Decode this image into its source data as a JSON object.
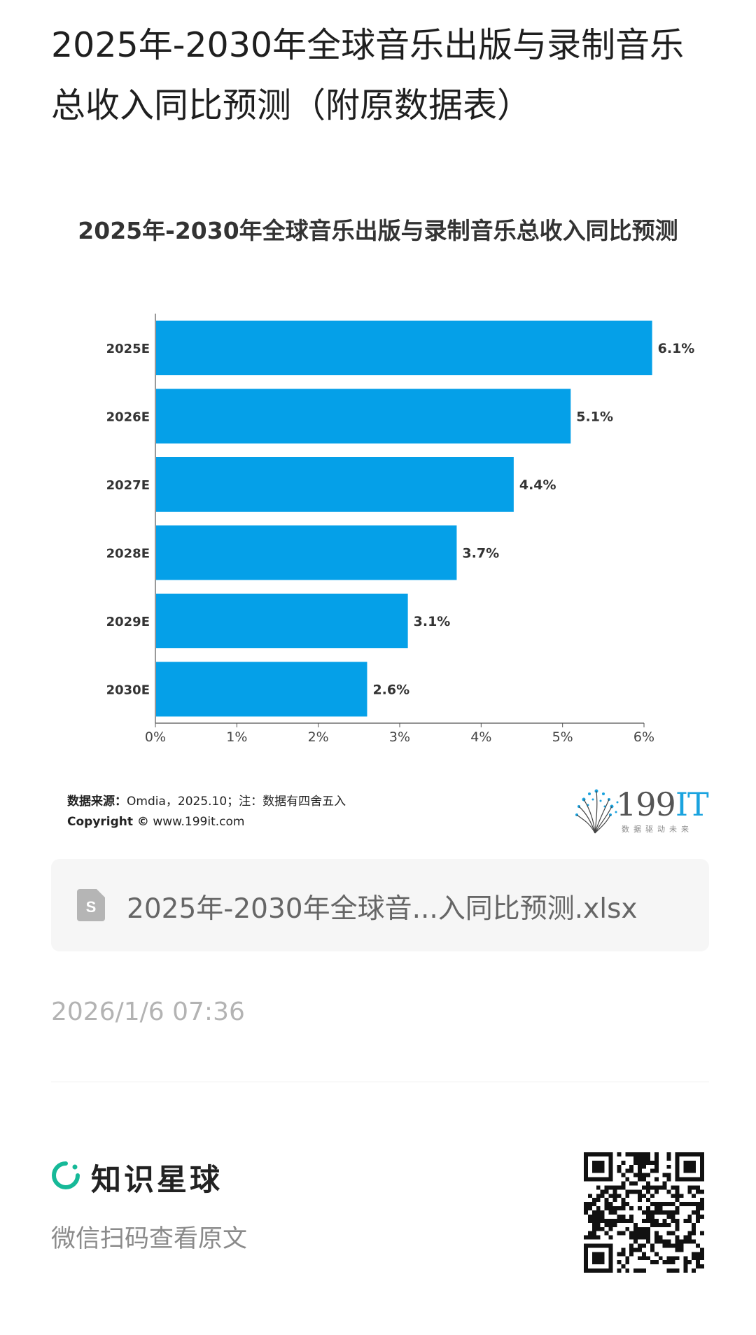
{
  "page": {
    "title": "2025年-2030年全球音乐出版与录制音乐总收入同比预测（附原数据表）"
  },
  "chart_data": {
    "type": "bar",
    "orientation": "horizontal",
    "title": "2025年-2030年全球音乐出版与录制音乐总收入同比预测",
    "categories": [
      "2025E",
      "2026E",
      "2027E",
      "2028E",
      "2029E",
      "2030E"
    ],
    "values": [
      6.1,
      5.1,
      4.4,
      3.7,
      3.1,
      2.6
    ],
    "value_labels": [
      "6.1%",
      "5.1%",
      "4.4%",
      "3.7%",
      "3.1%",
      "2.6%"
    ],
    "xlim": [
      0,
      6
    ],
    "xticks": [
      "0%",
      "1%",
      "2%",
      "3%",
      "4%",
      "5%",
      "6%"
    ],
    "xlabel": "",
    "ylabel": "",
    "bar_color": "#05a0e8",
    "grid": false,
    "legend": "none"
  },
  "source": {
    "label": "数据来源：",
    "text": "Omdia，2025.10；注：数据有四舍五入",
    "copyright_label": "Copyright ©",
    "copyright_url": "www.199it.com"
  },
  "brand": {
    "name_num": "199",
    "name_it": "IT",
    "tagline": "数据驱动未来"
  },
  "attachment": {
    "icon": "spreadsheet-file-icon",
    "filename": "2025年-2030年全球音...入同比预测.xlsx"
  },
  "timestamp": "2026/1/6 07:36",
  "footer": {
    "app_name": "知识星球",
    "hint": "微信扫码查看原文",
    "accent_color": "#16b998"
  }
}
